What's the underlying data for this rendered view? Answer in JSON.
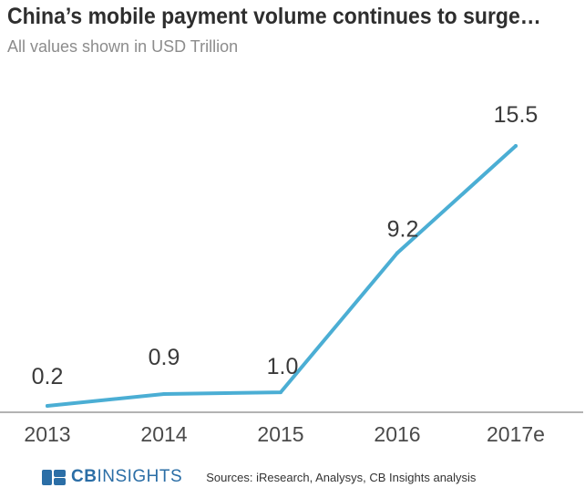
{
  "title": "China’s mobile payment volume continues to surge…",
  "subtitle": "All values shown in USD Trillion",
  "footer": {
    "brand_cb": "CB",
    "brand_insights": "INSIGHTS",
    "sources": "Sources: iResearch, Analysys, CB Insights analysis"
  },
  "colors": {
    "line": "#4baed4",
    "axis": "#9a9a9a",
    "brand": "#2b6ea6"
  },
  "chart_data": {
    "type": "line",
    "title": "China’s mobile payment volume continues to surge…",
    "subtitle": "All values shown in USD Trillion",
    "xlabel": "",
    "ylabel": "",
    "categories": [
      "2013",
      "2014",
      "2015",
      "2016",
      "2017e"
    ],
    "series": [
      {
        "values": [
          0.2,
          0.9,
          1.0,
          9.2,
          15.5
        ],
        "labels": [
          "0.2",
          "0.9",
          "1.0",
          "9.2",
          "15.5"
        ]
      }
    ],
    "ylim": [
      0,
      16
    ],
    "grid": false,
    "legend": "none"
  }
}
